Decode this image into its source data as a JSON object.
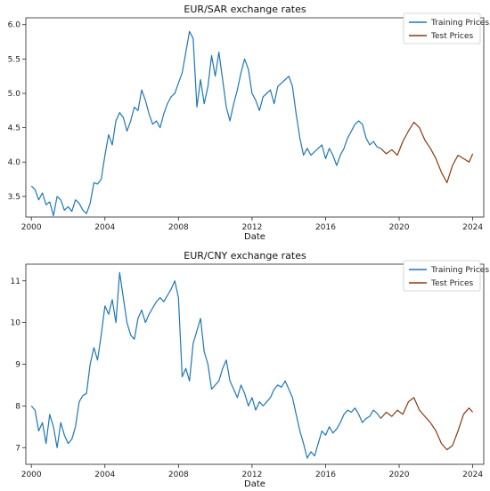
{
  "chart_data": [
    {
      "type": "line",
      "title": "EUR/SAR exchange rates",
      "xlabel": "Date",
      "ylabel": "",
      "xlim": [
        1999.7,
        2024.6
      ],
      "ylim": [
        3.2,
        6.1
      ],
      "xticks": [
        2000,
        2004,
        2008,
        2012,
        2016,
        2020,
        2024
      ],
      "xtick_labels": [
        "2000",
        "2004",
        "2008",
        "2012",
        "2016",
        "2020",
        "2024"
      ],
      "yticks": [
        3.5,
        4.0,
        4.5,
        5.0,
        5.5,
        6.0
      ],
      "ytick_labels": [
        "3.5",
        "4.0",
        "4.5",
        "5.0",
        "5.5",
        "6.0"
      ],
      "grid": false,
      "legend_position": "top-right",
      "series": [
        {
          "name": "Training Prices",
          "color": "#1f77b4",
          "x": [
            2000.0,
            2000.2,
            2000.4,
            2000.6,
            2000.8,
            2001.0,
            2001.2,
            2001.4,
            2001.6,
            2001.8,
            2002.0,
            2002.2,
            2002.4,
            2002.6,
            2002.8,
            2003.0,
            2003.2,
            2003.4,
            2003.6,
            2003.8,
            2004.0,
            2004.2,
            2004.4,
            2004.6,
            2004.8,
            2005.0,
            2005.2,
            2005.4,
            2005.6,
            2005.8,
            2006.0,
            2006.2,
            2006.4,
            2006.6,
            2006.8,
            2007.0,
            2007.2,
            2007.4,
            2007.6,
            2007.8,
            2008.0,
            2008.2,
            2008.4,
            2008.6,
            2008.8,
            2009.0,
            2009.2,
            2009.4,
            2009.6,
            2009.8,
            2010.0,
            2010.2,
            2010.4,
            2010.6,
            2010.8,
            2011.0,
            2011.2,
            2011.4,
            2011.6,
            2011.8,
            2012.0,
            2012.2,
            2012.4,
            2012.6,
            2012.8,
            2013.0,
            2013.2,
            2013.4,
            2013.6,
            2013.8,
            2014.0,
            2014.2,
            2014.4,
            2014.6,
            2014.8,
            2015.0,
            2015.2,
            2015.4,
            2015.6,
            2015.8,
            2016.0,
            2016.2,
            2016.4,
            2016.6,
            2016.8,
            2017.0,
            2017.2,
            2017.4,
            2017.6,
            2017.8,
            2018.0,
            2018.2,
            2018.4,
            2018.6,
            2018.8,
            2019.0
          ],
          "values": [
            3.65,
            3.6,
            3.45,
            3.55,
            3.38,
            3.42,
            3.22,
            3.5,
            3.45,
            3.3,
            3.35,
            3.28,
            3.45,
            3.4,
            3.3,
            3.25,
            3.4,
            3.7,
            3.68,
            3.75,
            4.1,
            4.4,
            4.25,
            4.6,
            4.72,
            4.65,
            4.45,
            4.6,
            4.8,
            4.75,
            5.05,
            4.9,
            4.7,
            4.55,
            4.6,
            4.5,
            4.7,
            4.85,
            4.95,
            5.0,
            5.15,
            5.3,
            5.6,
            5.9,
            5.8,
            4.8,
            5.2,
            4.85,
            5.1,
            5.55,
            5.25,
            5.6,
            5.2,
            4.8,
            4.6,
            4.85,
            5.05,
            5.3,
            5.5,
            5.35,
            5.0,
            4.9,
            4.75,
            4.95,
            5.0,
            5.05,
            4.85,
            5.1,
            5.15,
            5.2,
            5.25,
            5.1,
            4.7,
            4.35,
            4.1,
            4.2,
            4.1,
            4.15,
            4.2,
            4.25,
            4.05,
            4.2,
            4.1,
            3.95,
            4.1,
            4.2,
            4.35,
            4.45,
            4.55,
            4.6,
            4.55,
            4.35,
            4.25,
            4.3,
            4.22,
            4.2
          ]
        },
        {
          "name": "Test Prices",
          "color": "#8b3a0f",
          "x": [
            2019.0,
            2019.3,
            2019.6,
            2019.9,
            2020.2,
            2020.5,
            2020.8,
            2021.1,
            2021.4,
            2021.7,
            2022.0,
            2022.3,
            2022.6,
            2022.9,
            2023.2,
            2023.5,
            2023.8,
            2024.0
          ],
          "values": [
            4.2,
            4.12,
            4.18,
            4.1,
            4.3,
            4.45,
            4.58,
            4.5,
            4.32,
            4.2,
            4.05,
            3.85,
            3.7,
            3.95,
            4.1,
            4.05,
            4.0,
            4.12
          ]
        }
      ]
    },
    {
      "type": "line",
      "title": "EUR/CNY exchange rates",
      "xlabel": "Date",
      "ylabel": "",
      "xlim": [
        1999.7,
        2024.6
      ],
      "ylim": [
        6.6,
        11.4
      ],
      "xticks": [
        2000,
        2004,
        2008,
        2012,
        2016,
        2020,
        2024
      ],
      "xtick_labels": [
        "2000",
        "2004",
        "2008",
        "2012",
        "2016",
        "2020",
        "2024"
      ],
      "yticks": [
        7,
        8,
        9,
        10,
        11
      ],
      "ytick_labels": [
        "7",
        "8",
        "9",
        "10",
        "11"
      ],
      "grid": false,
      "legend_position": "top-right",
      "series": [
        {
          "name": "Training Prices",
          "color": "#1f77b4",
          "x": [
            2000.0,
            2000.2,
            2000.4,
            2000.6,
            2000.8,
            2001.0,
            2001.2,
            2001.4,
            2001.6,
            2001.8,
            2002.0,
            2002.2,
            2002.4,
            2002.6,
            2002.8,
            2003.0,
            2003.2,
            2003.4,
            2003.6,
            2003.8,
            2004.0,
            2004.2,
            2004.4,
            2004.6,
            2004.8,
            2005.0,
            2005.2,
            2005.4,
            2005.6,
            2005.8,
            2006.0,
            2006.2,
            2006.4,
            2006.6,
            2006.8,
            2007.0,
            2007.2,
            2007.4,
            2007.6,
            2007.8,
            2008.0,
            2008.2,
            2008.4,
            2008.6,
            2008.8,
            2009.0,
            2009.2,
            2009.4,
            2009.6,
            2009.8,
            2010.0,
            2010.2,
            2010.4,
            2010.6,
            2010.8,
            2011.0,
            2011.2,
            2011.4,
            2011.6,
            2011.8,
            2012.0,
            2012.2,
            2012.4,
            2012.6,
            2012.8,
            2013.0,
            2013.2,
            2013.4,
            2013.6,
            2013.8,
            2014.0,
            2014.2,
            2014.4,
            2014.6,
            2014.8,
            2015.0,
            2015.2,
            2015.4,
            2015.6,
            2015.8,
            2016.0,
            2016.2,
            2016.4,
            2016.6,
            2016.8,
            2017.0,
            2017.2,
            2017.4,
            2017.6,
            2017.8,
            2018.0,
            2018.2,
            2018.4,
            2018.6,
            2018.8,
            2019.0
          ],
          "values": [
            8.0,
            7.9,
            7.4,
            7.6,
            7.1,
            7.8,
            7.5,
            7.0,
            7.6,
            7.3,
            7.1,
            7.2,
            7.5,
            8.1,
            8.25,
            8.3,
            9.0,
            9.4,
            9.1,
            9.7,
            10.4,
            10.2,
            10.55,
            10.0,
            11.2,
            10.6,
            10.0,
            9.7,
            9.6,
            10.1,
            10.3,
            10.0,
            10.2,
            10.35,
            10.5,
            10.6,
            10.5,
            10.65,
            10.8,
            11.0,
            10.6,
            8.7,
            8.9,
            8.6,
            9.5,
            9.8,
            10.1,
            9.3,
            9.0,
            8.4,
            8.5,
            8.6,
            8.9,
            9.1,
            8.6,
            8.4,
            8.2,
            8.5,
            8.3,
            8.0,
            8.2,
            7.9,
            8.1,
            8.0,
            8.1,
            8.2,
            8.4,
            8.5,
            8.45,
            8.6,
            8.4,
            8.2,
            7.8,
            7.4,
            7.1,
            6.75,
            6.9,
            6.8,
            7.1,
            7.4,
            7.3,
            7.5,
            7.35,
            7.45,
            7.6,
            7.8,
            7.9,
            7.85,
            7.95,
            7.8,
            7.6,
            7.7,
            7.75,
            7.9,
            7.82,
            7.7
          ]
        },
        {
          "name": "Test Prices",
          "color": "#8b3a0f",
          "x": [
            2019.0,
            2019.3,
            2019.6,
            2019.9,
            2020.2,
            2020.5,
            2020.8,
            2021.1,
            2021.4,
            2021.7,
            2022.0,
            2022.3,
            2022.6,
            2022.9,
            2023.2,
            2023.5,
            2023.8,
            2024.0
          ],
          "values": [
            7.7,
            7.85,
            7.75,
            7.9,
            7.8,
            8.1,
            8.2,
            7.9,
            7.75,
            7.6,
            7.4,
            7.1,
            6.95,
            7.05,
            7.4,
            7.8,
            7.95,
            7.85
          ]
        }
      ]
    }
  ]
}
